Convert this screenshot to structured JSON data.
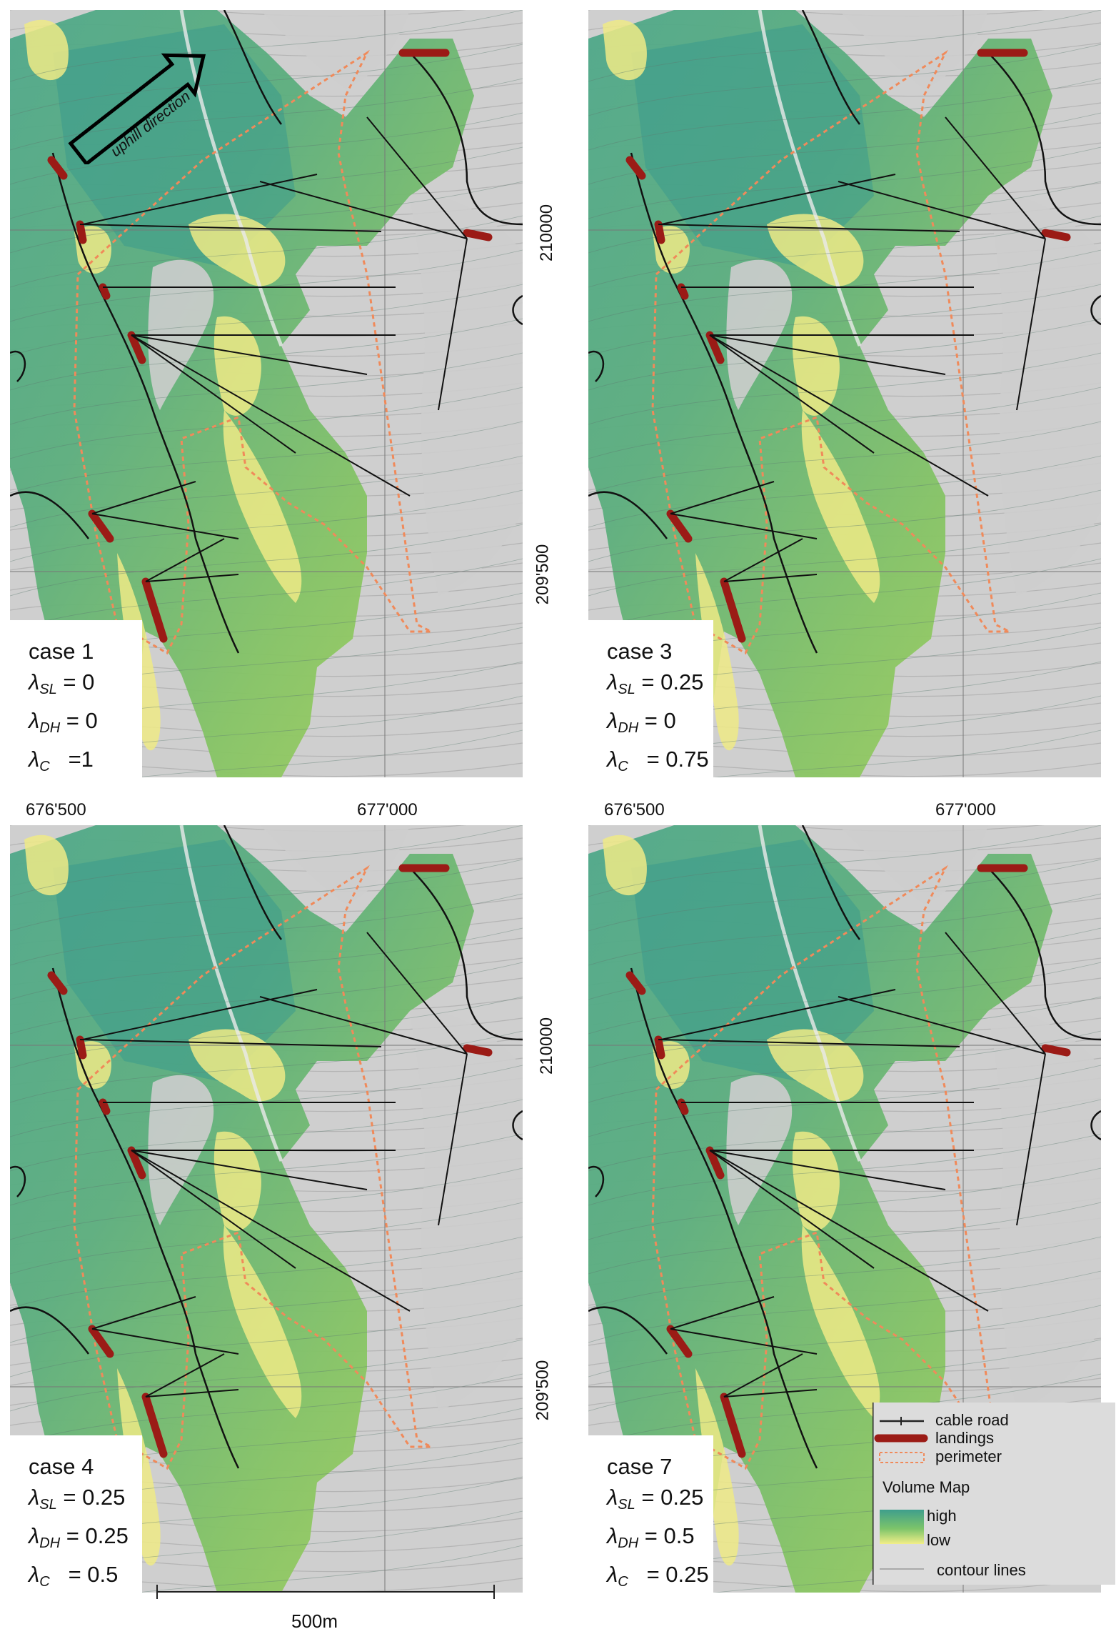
{
  "panels": [
    {
      "id": "case1",
      "case": "case 1",
      "sl": "= 0",
      "dh": "= 0",
      "c": "=1",
      "show_arrow": true
    },
    {
      "id": "case3",
      "case": "case 3",
      "sl": "= 0.25",
      "dh": "= 0",
      "c": "0.75"
    },
    {
      "id": "case4",
      "case": "case 4",
      "sl": "= 0.25",
      "dh": "= 0.25",
      "c": "0.5"
    },
    {
      "id": "case7",
      "case": "case 7",
      "sl": "= 0.25",
      "dh": "= 0.5",
      "c": "0.25"
    }
  ],
  "labels": {
    "uphill": "uphill direction",
    "lambda": "λ",
    "sub_sl": "SL",
    "sub_dh": "DH",
    "sub_c": "C",
    "c_eq": "=",
    "y_210000_right_top": "210000",
    "y_209500_right_top": "209'500",
    "y_210000_right_bottom": "210000",
    "y_209500_right_bottom": "209'500",
    "x_676500_left": "676'500",
    "x_677000_left": "677'000",
    "x_676500_right": "676'500",
    "x_677000_right": "677'000"
  },
  "legend": {
    "cable_road": "cable road",
    "landings": "landings",
    "perimeter": "perimeter",
    "volume_map": "Volume Map",
    "high": "high",
    "low": "low",
    "contour": "contour lines",
    "colors": {
      "high": "#3f9e8c",
      "low": "#f2ee88",
      "landing": "#9b1b16",
      "perimeter": "#f08a5a"
    }
  },
  "scale": {
    "label": "500m"
  }
}
